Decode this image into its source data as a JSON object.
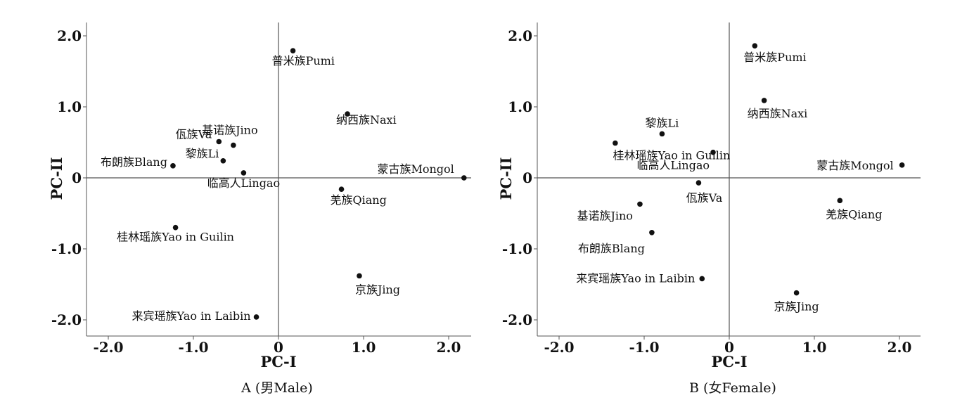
{
  "chart_data": [
    {
      "type": "scatter",
      "caption": "A (男Male)",
      "xlabel": "PC-I",
      "ylabel": "PC-II",
      "xlim": [
        -2.25,
        2.25
      ],
      "ylim": [
        -2.2,
        2.2
      ],
      "xticks": [
        {
          "v": -2.0,
          "label": "-2.0"
        },
        {
          "v": -1.0,
          "label": "-1.0"
        },
        {
          "v": 0,
          "label": "0"
        },
        {
          "v": 1.0,
          "label": "1.0"
        },
        {
          "v": 2.0,
          "label": "2.0"
        }
      ],
      "yticks": [
        {
          "v": 2.0,
          "label": "2.0"
        },
        {
          "v": 1.0,
          "label": "1.0"
        },
        {
          "v": 0,
          "label": "0"
        },
        {
          "v": -1.0,
          "label": "-1.0"
        },
        {
          "v": -2.0,
          "label": "-2.0"
        }
      ],
      "points": [
        {
          "label": "普米族Pumi",
          "x": 0.17,
          "y": 1.79
        },
        {
          "label": "纳西族Naxi",
          "x": 0.81,
          "y": 0.9
        },
        {
          "label": "基诺族Jino",
          "x": -0.53,
          "y": 0.46
        },
        {
          "label": "佤族Va",
          "x": -0.7,
          "y": 0.51
        },
        {
          "label": "黎族Li",
          "x": -0.65,
          "y": 0.24
        },
        {
          "label": "布朗族Blang",
          "x": -1.24,
          "y": 0.17
        },
        {
          "label": "临高人Lingao",
          "x": -0.41,
          "y": 0.07
        },
        {
          "label": "蒙古族Mongol",
          "x": 2.18,
          "y": 0.0
        },
        {
          "label": "羌族Qiang",
          "x": 0.74,
          "y": -0.16
        },
        {
          "label": "桂林瑶族Yao in Guilin",
          "x": -1.21,
          "y": -0.7
        },
        {
          "label": "京族Jing",
          "x": 0.95,
          "y": -1.38
        },
        {
          "label": "来宾瑶族Yao in Laibin",
          "x": -0.26,
          "y": -1.96
        }
      ]
    },
    {
      "type": "scatter",
      "caption": "B (女Female)",
      "xlabel": "PC-I",
      "ylabel": "PC-II",
      "xlim": [
        -2.25,
        2.25
      ],
      "ylim": [
        -2.2,
        2.2
      ],
      "xticks": [
        {
          "v": -2.0,
          "label": "-2.0"
        },
        {
          "v": -1.0,
          "label": "-1.0"
        },
        {
          "v": 0,
          "label": "0"
        },
        {
          "v": 1.0,
          "label": "1.0"
        },
        {
          "v": 2.0,
          "label": "2.0"
        }
      ],
      "yticks": [
        {
          "v": 2.0,
          "label": "2.0"
        },
        {
          "v": 1.0,
          "label": "1.0"
        },
        {
          "v": 0,
          "label": "0"
        },
        {
          "v": -1.0,
          "label": "-1.0"
        },
        {
          "v": -2.0,
          "label": "-2.0"
        }
      ],
      "points": [
        {
          "label": "普米族Pumi",
          "x": 0.3,
          "y": 1.86
        },
        {
          "label": "纳西族Naxi",
          "x": 0.41,
          "y": 1.09
        },
        {
          "label": "黎族Li",
          "x": -0.79,
          "y": 0.62
        },
        {
          "label": "桂林瑶族Yao in Guilin",
          "x": -1.34,
          "y": 0.49
        },
        {
          "label": "临高人Lingao",
          "x": -0.19,
          "y": 0.36
        },
        {
          "label": "蒙古族Mongol",
          "x": 2.03,
          "y": 0.18
        },
        {
          "label": "佤族Va",
          "x": -0.36,
          "y": -0.07
        },
        {
          "label": "羌族Qiang",
          "x": 1.3,
          "y": -0.32
        },
        {
          "label": "基诺族Jino",
          "x": -1.05,
          "y": -0.37
        },
        {
          "label": "布朗族Blang",
          "x": -0.91,
          "y": -0.77
        },
        {
          "label": "来宾瑶族Yao in Laibin",
          "x": -0.32,
          "y": -1.42
        },
        {
          "label": "京族Jing",
          "x": 0.79,
          "y": -1.62
        }
      ]
    }
  ]
}
